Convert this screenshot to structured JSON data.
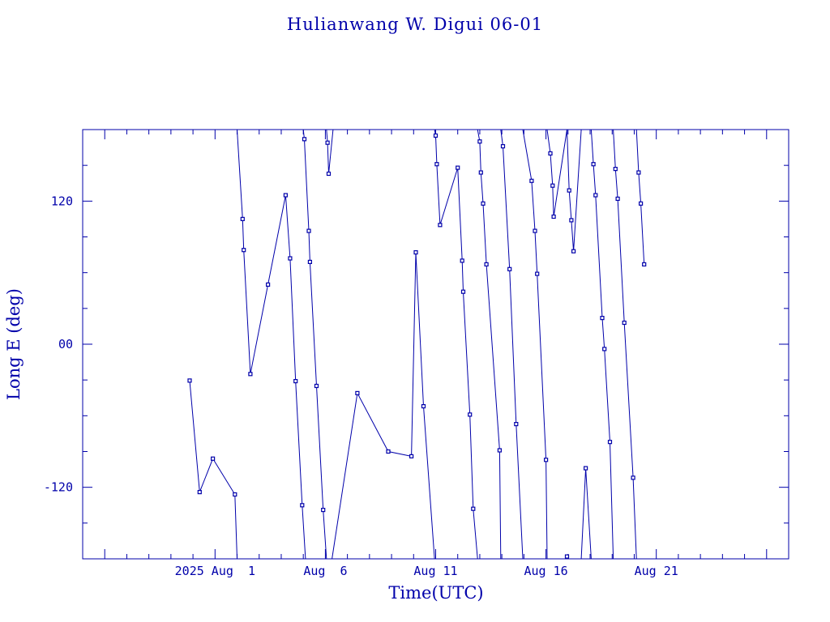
{
  "chart_data": {
    "type": "line",
    "title": "Hulianwang W. Digui 06-01",
    "xlabel": "Time(UTC)",
    "ylabel": "Long E (deg)",
    "color": "#0000aa",
    "x_range_days": [
      -7.0,
      25.0
    ],
    "ylim": [
      -180,
      180
    ],
    "x_tick_labels": [
      {
        "day": -1,
        "label": "2025 Aug  1"
      },
      {
        "day": 4,
        "label": "Aug  6"
      },
      {
        "day": 9,
        "label": "Aug 11"
      },
      {
        "day": 14,
        "label": "Aug 16"
      },
      {
        "day": 19,
        "label": "Aug 21"
      }
    ],
    "y_tick_labels": [
      {
        "value": 120,
        "label": "120"
      },
      {
        "value": 0,
        "label": "00"
      },
      {
        "value": -120,
        "label": "-120"
      }
    ],
    "segments": [
      [
        [
          -2.15,
          -30.5
        ],
        [
          -1.7,
          -124
        ],
        [
          -1.1,
          -96
        ],
        [
          -0.1,
          -126
        ],
        [
          0.0,
          -180
        ]
      ],
      [
        [
          0.0,
          180
        ],
        [
          0.25,
          105
        ],
        [
          0.3,
          79
        ],
        [
          0.6,
          -25
        ],
        [
          1.4,
          50
        ],
        [
          2.2,
          125
        ],
        [
          2.4,
          72
        ],
        [
          2.65,
          -31
        ],
        [
          2.95,
          -135
        ],
        [
          3.1,
          -180
        ]
      ],
      [
        [
          3.0,
          180
        ],
        [
          3.05,
          172
        ],
        [
          3.25,
          95
        ],
        [
          3.3,
          69
        ],
        [
          3.6,
          -35
        ],
        [
          3.9,
          -139
        ],
        [
          4.05,
          -180
        ]
      ],
      [
        [
          4.05,
          180
        ],
        [
          4.1,
          169
        ],
        [
          4.15,
          143
        ],
        [
          4.35,
          180
        ]
      ],
      [
        [
          4.3,
          -180
        ],
        [
          5.45,
          -41
        ],
        [
          6.85,
          -90
        ],
        [
          7.9,
          -94
        ],
        [
          8.1,
          77
        ],
        [
          8.45,
          -52
        ],
        [
          8.95,
          -180
        ]
      ],
      [
        [
          8.95,
          180
        ],
        [
          9.0,
          175
        ],
        [
          9.05,
          151
        ],
        [
          9.2,
          100
        ],
        [
          10.0,
          148
        ],
        [
          10.2,
          70
        ],
        [
          10.25,
          44
        ],
        [
          10.55,
          -59
        ],
        [
          10.7,
          -138
        ],
        [
          10.9,
          -180
        ]
      ],
      [
        [
          10.9,
          180
        ],
        [
          11.0,
          170
        ],
        [
          11.05,
          144
        ],
        [
          11.15,
          118
        ],
        [
          11.3,
          67
        ],
        [
          11.9,
          -89
        ],
        [
          11.95,
          -180
        ]
      ],
      [
        [
          11.95,
          180
        ],
        [
          12.05,
          166
        ],
        [
          12.35,
          63
        ],
        [
          12.65,
          -67
        ],
        [
          12.95,
          -180
        ]
      ],
      [
        [
          12.95,
          180
        ],
        [
          13.35,
          137
        ],
        [
          13.5,
          95
        ],
        [
          13.6,
          59
        ],
        [
          14.0,
          -97
        ],
        [
          14.05,
          -180
        ]
      ],
      [
        [
          14.05,
          180
        ],
        [
          14.2,
          160
        ],
        [
          14.3,
          133
        ],
        [
          14.35,
          107
        ],
        [
          14.95,
          180
        ]
      ],
      [
        [
          14.95,
          -178
        ],
        [
          14.95,
          -180
        ]
      ],
      [
        [
          14.95,
          180
        ],
        [
          15.05,
          129
        ],
        [
          15.15,
          104
        ],
        [
          15.25,
          78
        ],
        [
          15.6,
          180
        ]
      ],
      [
        [
          15.6,
          -180
        ],
        [
          15.8,
          -104
        ],
        [
          16.05,
          -180
        ]
      ],
      [
        [
          16.05,
          180
        ],
        [
          16.15,
          151
        ],
        [
          16.25,
          125
        ],
        [
          16.55,
          22
        ],
        [
          16.65,
          -4
        ],
        [
          16.9,
          -82
        ],
        [
          17.05,
          -180
        ]
      ],
      [
        [
          17.05,
          180
        ],
        [
          17.15,
          147
        ],
        [
          17.25,
          122
        ],
        [
          17.55,
          18
        ],
        [
          17.95,
          -112
        ],
        [
          18.1,
          -180
        ]
      ],
      [
        [
          18.1,
          180
        ],
        [
          18.2,
          144
        ],
        [
          18.3,
          118
        ],
        [
          18.45,
          67
        ]
      ]
    ],
    "markers": [
      [
        -2.15,
        -30.5
      ],
      [
        -1.7,
        -124
      ],
      [
        -1.1,
        -96
      ],
      [
        -0.1,
        -126
      ],
      [
        0.25,
        105
      ],
      [
        0.3,
        79
      ],
      [
        0.6,
        -25
      ],
      [
        1.4,
        50
      ],
      [
        2.2,
        125
      ],
      [
        2.4,
        72
      ],
      [
        2.65,
        -31
      ],
      [
        2.95,
        -135
      ],
      [
        3.05,
        172
      ],
      [
        3.25,
        95
      ],
      [
        3.3,
        69
      ],
      [
        3.6,
        -35
      ],
      [
        3.9,
        -139
      ],
      [
        4.1,
        169
      ],
      [
        4.15,
        143
      ],
      [
        5.45,
        -41
      ],
      [
        6.85,
        -90
      ],
      [
        7.9,
        -94
      ],
      [
        8.1,
        77
      ],
      [
        8.45,
        -52
      ],
      [
        9.0,
        175
      ],
      [
        9.05,
        151
      ],
      [
        9.2,
        100
      ],
      [
        10.0,
        148
      ],
      [
        10.2,
        70
      ],
      [
        10.25,
        44
      ],
      [
        10.55,
        -59
      ],
      [
        10.7,
        -138
      ],
      [
        11.0,
        170
      ],
      [
        11.05,
        144
      ],
      [
        11.15,
        118
      ],
      [
        11.3,
        67
      ],
      [
        11.9,
        -89
      ],
      [
        12.05,
        166
      ],
      [
        12.35,
        63
      ],
      [
        12.65,
        -67
      ],
      [
        13.35,
        137
      ],
      [
        13.5,
        95
      ],
      [
        13.6,
        59
      ],
      [
        14.0,
        -97
      ],
      [
        14.2,
        160
      ],
      [
        14.3,
        133
      ],
      [
        14.35,
        107
      ],
      [
        14.95,
        -178
      ],
      [
        15.05,
        129
      ],
      [
        15.15,
        104
      ],
      [
        15.25,
        78
      ],
      [
        15.8,
        -104
      ],
      [
        16.15,
        151
      ],
      [
        16.25,
        125
      ],
      [
        16.55,
        22
      ],
      [
        16.65,
        -4
      ],
      [
        16.9,
        -82
      ],
      [
        17.15,
        147
      ],
      [
        17.25,
        122
      ],
      [
        17.55,
        18
      ],
      [
        17.95,
        -112
      ],
      [
        18.2,
        144
      ],
      [
        18.3,
        118
      ],
      [
        18.45,
        67
      ]
    ]
  }
}
